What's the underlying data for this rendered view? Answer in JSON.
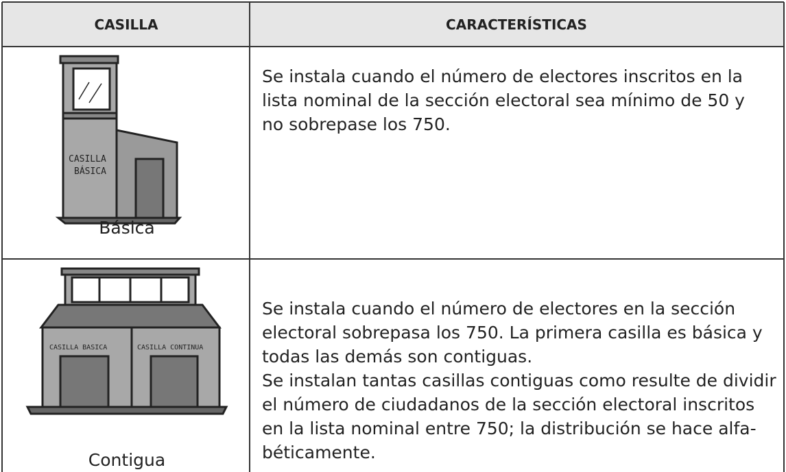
{
  "table": {
    "header": [
      "CASILLA",
      "CARACTERÍSTICAS"
    ],
    "rows": [
      {
        "image_labels": [
          "CASILLA",
          "BÁSICA"
        ],
        "name": "Básica",
        "lines": [
          "Se instala cuando el número de electores inscritos en la",
          "lista nominal de la sección electoral sea mínimo de 50 y",
          "no sobrepase los 750."
        ]
      },
      {
        "image_labels": [
          "CASILLA BASICA",
          "CASILLA CONTINUA"
        ],
        "name": "Contigua",
        "lines": [
          "Se instala cuando el número de electores en la sección",
          "electoral sobrepasa los 750. La primera casilla es básica y",
          "todas las demás son contiguas.",
          "Se instalan tantas casillas contiguas como resulte de dividir",
          "el número de ciudadanos de la sección electoral inscritos",
          "en la lista nominal entre 750; la distribución se hace alfa-",
          "béticamente."
        ]
      }
    ]
  }
}
